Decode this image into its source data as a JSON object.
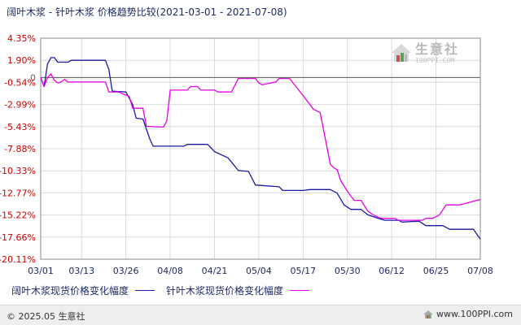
{
  "title": "阔叶木浆 - 针叶木浆 价格趋势比较(2021-03-01 - 2021-07-08)",
  "watermark": {
    "name": "生意社",
    "site": "100PPI.COM"
  },
  "footer": {
    "copyright": "© 2025.05 生意社",
    "site": "www.100PPI.com"
  },
  "colors": {
    "series_1": "#1a1aa6",
    "series_2": "#e600e6",
    "grid": "#d9d9d9",
    "axis": "#888888",
    "tick_label": "#cc0000",
    "x_label": "#1f2a66"
  },
  "chart_data": {
    "type": "line",
    "title": "阔叶木浆 - 针叶木浆 价格趋势比较(2021-03-01 - 2021-07-08)",
    "xlabel": "",
    "ylabel": "",
    "x_ticks": [
      "03/01",
      "03/13",
      "03/26",
      "04/08",
      "04/21",
      "05/04",
      "05/17",
      "05/30",
      "06/12",
      "06/25",
      "07/08"
    ],
    "y_ticks": [
      "4.35%",
      "1.90%",
      "0",
      "-0.54%",
      "-2.99%",
      "-5.43%",
      "-7.88%",
      "-10.33%",
      "-12.77%",
      "-15.22%",
      "-17.66%",
      "-20.11%"
    ],
    "ylim": [
      -20.11,
      4.35
    ],
    "grid": true,
    "legend_position": "bottom-left",
    "series": [
      {
        "name": "阔叶木浆现货价格变化幅度",
        "color": "#1a1aa6",
        "points": [
          [
            "03/01",
            0
          ],
          [
            "03/02",
            -1
          ],
          [
            "03/03",
            1.5
          ],
          [
            "03/04",
            2.2
          ],
          [
            "03/05",
            2.2
          ],
          [
            "03/06",
            1.7
          ],
          [
            "03/09",
            1.7
          ],
          [
            "03/10",
            1.9
          ],
          [
            "03/20",
            1.9
          ],
          [
            "03/21",
            0.9
          ],
          [
            "03/22",
            -1.5
          ],
          [
            "03/26",
            -1.6
          ],
          [
            "03/28",
            -3.0
          ],
          [
            "03/29",
            -4.5
          ],
          [
            "03/31",
            -4.6
          ],
          [
            "04/02",
            -6.8
          ],
          [
            "04/03",
            -7.6
          ],
          [
            "04/12",
            -7.6
          ],
          [
            "04/13",
            -7.4
          ],
          [
            "04/19",
            -7.4
          ],
          [
            "04/21",
            -8.2
          ],
          [
            "04/25",
            -8.9
          ],
          [
            "04/28",
            -10.3
          ],
          [
            "05/01",
            -10.4
          ],
          [
            "05/03",
            -11.9
          ],
          [
            "05/10",
            -12.1
          ],
          [
            "05/11",
            -12.5
          ],
          [
            "05/17",
            -12.5
          ],
          [
            "05/19",
            -12.4
          ],
          [
            "05/25",
            -12.4
          ],
          [
            "05/27",
            -12.8
          ],
          [
            "05/29",
            -14.1
          ],
          [
            "05/31",
            -14.6
          ],
          [
            "06/03",
            -14.6
          ],
          [
            "06/05",
            -15.2
          ],
          [
            "06/08",
            -15.6
          ],
          [
            "06/10",
            -15.8
          ],
          [
            "06/14",
            -15.8
          ],
          [
            "06/15",
            -16.0
          ],
          [
            "06/20",
            -15.9
          ],
          [
            "06/22",
            -16.4
          ],
          [
            "06/27",
            -16.4
          ],
          [
            "06/29",
            -16.8
          ],
          [
            "07/06",
            -16.8
          ],
          [
            "07/08",
            -17.9
          ]
        ]
      },
      {
        "name": "针叶木浆现货价格变化幅度",
        "color": "#e600e6",
        "points": [
          [
            "03/01",
            0
          ],
          [
            "03/02",
            -1
          ],
          [
            "03/03",
            0
          ],
          [
            "03/04",
            0.4
          ],
          [
            "03/05",
            -0.3
          ],
          [
            "03/06",
            -0.6
          ],
          [
            "03/07",
            -0.5
          ],
          [
            "03/08",
            -0.2
          ],
          [
            "03/09",
            -0.5
          ],
          [
            "03/20",
            -0.5
          ],
          [
            "03/21",
            -1.6
          ],
          [
            "03/24",
            -1.6
          ],
          [
            "03/25",
            -1.8
          ],
          [
            "03/27",
            -2.1
          ],
          [
            "03/28",
            -3.4
          ],
          [
            "03/31",
            -3.4
          ],
          [
            "04/01",
            -5.4
          ],
          [
            "04/06",
            -5.5
          ],
          [
            "04/07",
            -4.8
          ],
          [
            "04/08",
            -1.4
          ],
          [
            "04/13",
            -1.4
          ],
          [
            "04/14",
            -1.0
          ],
          [
            "04/16",
            -1.0
          ],
          [
            "04/17",
            -1.4
          ],
          [
            "04/21",
            -1.4
          ],
          [
            "04/22",
            -1.6
          ],
          [
            "04/26",
            -1.6
          ],
          [
            "04/28",
            -0.1
          ],
          [
            "05/03",
            -0.1
          ],
          [
            "05/04",
            -0.6
          ],
          [
            "05/05",
            -0.8
          ],
          [
            "05/09",
            -0.5
          ],
          [
            "05/10",
            -0.1
          ],
          [
            "05/13",
            -0.1
          ],
          [
            "05/17",
            -2.0
          ],
          [
            "05/20",
            -3.5
          ],
          [
            "05/22",
            -3.9
          ],
          [
            "05/25",
            -9.6
          ],
          [
            "05/26",
            -10.0
          ],
          [
            "05/27",
            -10.2
          ],
          [
            "05/28",
            -11.4
          ],
          [
            "05/30",
            -12.6
          ],
          [
            "06/01",
            -13.6
          ],
          [
            "06/03",
            -13.6
          ],
          [
            "06/05",
            -14.8
          ],
          [
            "06/07",
            -15.3
          ],
          [
            "06/09",
            -15.6
          ],
          [
            "06/13",
            -15.6
          ],
          [
            "06/14",
            -15.8
          ],
          [
            "06/21",
            -15.8
          ],
          [
            "06/22",
            -15.6
          ],
          [
            "06/24",
            -15.6
          ],
          [
            "06/26",
            -15.2
          ],
          [
            "06/28",
            -14.1
          ],
          [
            "07/02",
            -14.1
          ],
          [
            "07/04",
            -13.9
          ],
          [
            "07/08",
            -13.5
          ]
        ]
      }
    ]
  }
}
